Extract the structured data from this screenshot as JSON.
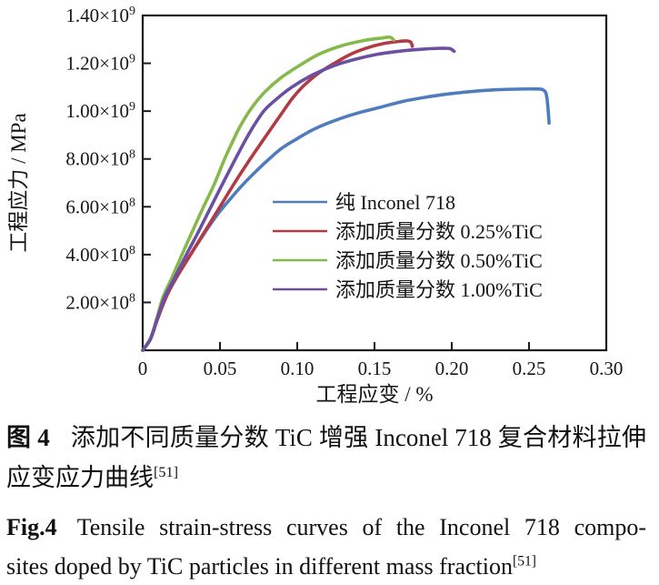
{
  "figure": {
    "captions": {
      "cn": {
        "label": "图 4",
        "line1": "添加不同质量分数 TiC 增强 Inconel 718 复合材料拉伸",
        "line2": "应变应力曲线",
        "ref": "[51]"
      },
      "en": {
        "label": "Fig.4",
        "line1": "Tensile strain-stress curves of the Inconel 718 compo-",
        "line2": "sites doped by TiC particles in different mass fraction",
        "ref": "[51]"
      }
    }
  },
  "chart_data": {
    "type": "line",
    "title": "",
    "xlabel": "工程应变 / %",
    "ylabel": "工程应力 / MPa",
    "xlim": [
      0,
      0.3
    ],
    "ylim": [
      0,
      1400000000.0
    ],
    "grid": false,
    "legend_position": "inside-right-middle",
    "axis_color": "#1a1a1a",
    "x_ticks": [
      {
        "v": 0.0,
        "label": "0"
      },
      {
        "v": 0.05,
        "label": "0.05"
      },
      {
        "v": 0.1,
        "label": "0.10"
      },
      {
        "v": 0.15,
        "label": "0.15"
      },
      {
        "v": 0.2,
        "label": "0.20"
      },
      {
        "v": 0.25,
        "label": "0.25"
      },
      {
        "v": 0.3,
        "label": "0.30"
      }
    ],
    "y_ticks": [
      {
        "v": 200000000.0,
        "m": "2.00×10",
        "e": "8"
      },
      {
        "v": 400000000.0,
        "m": "4.00×10",
        "e": "8"
      },
      {
        "v": 600000000.0,
        "m": "6.00×10",
        "e": "8"
      },
      {
        "v": 800000000.0,
        "m": "8.00×10",
        "e": "8"
      },
      {
        "v": 1000000000.0,
        "m": "1.00×10",
        "e": "9"
      },
      {
        "v": 1200000000.0,
        "m": "1.20×10",
        "e": "9"
      },
      {
        "v": 1400000000.0,
        "m": "1.40×10",
        "e": "9"
      }
    ],
    "series": [
      {
        "id": "pure-inconel-718",
        "name": "纯 Inconel 718",
        "color": "#4f7cbe",
        "points": [
          [
            0,
            0
          ],
          [
            0.005,
            46000000.0
          ],
          [
            0.009,
            120000000.0
          ],
          [
            0.015,
            220000000.0
          ],
          [
            0.021,
            295000000.0
          ],
          [
            0.03,
            390000000.0
          ],
          [
            0.04,
            490000000.0
          ],
          [
            0.048,
            565000000.0
          ],
          [
            0.055,
            620000000.0
          ],
          [
            0.063,
            680000000.0
          ],
          [
            0.072,
            740000000.0
          ],
          [
            0.081,
            795000000.0
          ],
          [
            0.09,
            845000000.0
          ],
          [
            0.1,
            885000000.0
          ],
          [
            0.111,
            925000000.0
          ],
          [
            0.124,
            960000000.0
          ],
          [
            0.138,
            990000000.0
          ],
          [
            0.153,
            1015000000.0
          ],
          [
            0.168,
            1040000000.0
          ],
          [
            0.183,
            1058000000.0
          ],
          [
            0.198,
            1072000000.0
          ],
          [
            0.213,
            1082000000.0
          ],
          [
            0.228,
            1089000000.0
          ],
          [
            0.242,
            1092000000.0
          ],
          [
            0.253,
            1092500000.0
          ],
          [
            0.259,
            1089000000.0
          ],
          [
            0.2615,
            1060000000.0
          ],
          [
            0.263,
            950000000.0
          ]
        ]
      },
      {
        "id": "tic-025",
        "name": "添加质量分数 0.25%TiC",
        "color": "#b23a45",
        "points": [
          [
            0,
            0
          ],
          [
            0.005,
            46000000.0
          ],
          [
            0.009,
            120000000.0
          ],
          [
            0.015,
            220000000.0
          ],
          [
            0.021,
            295000000.0
          ],
          [
            0.03,
            390000000.0
          ],
          [
            0.04,
            495000000.0
          ],
          [
            0.05,
            600000000.0
          ],
          [
            0.059,
            695000000.0
          ],
          [
            0.068,
            785000000.0
          ],
          [
            0.077,
            870000000.0
          ],
          [
            0.085,
            945000000.0
          ],
          [
            0.091,
            1000000000.0
          ],
          [
            0.097,
            1055000000.0
          ],
          [
            0.104,
            1105000000.0
          ],
          [
            0.113,
            1155000000.0
          ],
          [
            0.124,
            1200000000.0
          ],
          [
            0.136,
            1242000000.0
          ],
          [
            0.148,
            1270000000.0
          ],
          [
            0.158,
            1285000000.0
          ],
          [
            0.166,
            1291500000.0
          ],
          [
            0.171,
            1293500000.0
          ],
          [
            0.1735,
            1288000000.0
          ],
          [
            0.1745,
            1271000000.0
          ]
        ]
      },
      {
        "id": "tic-050",
        "name": "添加质量分数 0.50%TiC",
        "color": "#86b94b",
        "points": [
          [
            0,
            0
          ],
          [
            0.005,
            50000000.0
          ],
          [
            0.009,
            130000000.0
          ],
          [
            0.013,
            220000000.0
          ],
          [
            0.019,
            305000000.0
          ],
          [
            0.0254,
            400000000.0
          ],
          [
            0.032,
            495000000.0
          ],
          [
            0.039,
            595000000.0
          ],
          [
            0.046,
            690000000.0
          ],
          [
            0.053,
            800000000.0
          ],
          [
            0.058,
            870000000.0
          ],
          [
            0.0625,
            930000000.0
          ],
          [
            0.068,
            990000000.0
          ],
          [
            0.073,
            1035000000.0
          ],
          [
            0.079,
            1080000000.0
          ],
          [
            0.089,
            1137000000.0
          ],
          [
            0.1,
            1185000000.0
          ],
          [
            0.114,
            1238000000.0
          ],
          [
            0.129,
            1274000000.0
          ],
          [
            0.144,
            1296000000.0
          ],
          [
            0.154,
            1305000000.0
          ],
          [
            0.16,
            1309000000.0
          ],
          [
            0.1625,
            1297000000.0
          ]
        ]
      },
      {
        "id": "tic-100",
        "name": "添加质量分数 1.00%TiC",
        "color": "#6b50a2",
        "points": [
          [
            0,
            0
          ],
          [
            0.005,
            48000000.0
          ],
          [
            0.009,
            125000000.0
          ],
          [
            0.014,
            220000000.0
          ],
          [
            0.02,
            295000000.0
          ],
          [
            0.0283,
            400000000.0
          ],
          [
            0.036,
            495000000.0
          ],
          [
            0.0442,
            600000000.0
          ],
          [
            0.052,
            700000000.0
          ],
          [
            0.06,
            800000000.0
          ],
          [
            0.067,
            885000000.0
          ],
          [
            0.0735,
            955000000.0
          ],
          [
            0.079,
            1005000000.0
          ],
          [
            0.0865,
            1050000000.0
          ],
          [
            0.096,
            1098000000.0
          ],
          [
            0.108,
            1145000000.0
          ],
          [
            0.122,
            1186000000.0
          ],
          [
            0.137,
            1216000000.0
          ],
          [
            0.152,
            1238000000.0
          ],
          [
            0.168,
            1252000000.0
          ],
          [
            0.183,
            1260000000.0
          ],
          [
            0.194,
            1263000000.0
          ],
          [
            0.199,
            1261000000.0
          ],
          [
            0.2015,
            1250000000.0
          ]
        ]
      }
    ]
  }
}
